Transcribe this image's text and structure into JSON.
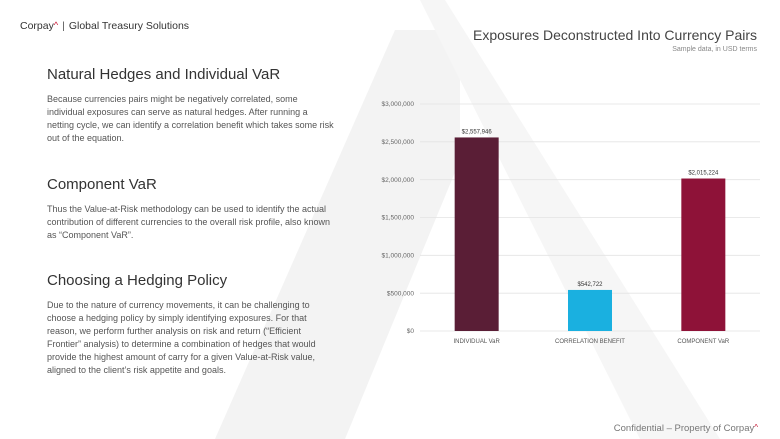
{
  "brand": {
    "name": "Corpay",
    "tagline": "Global Treasury Solutions"
  },
  "sections": [
    {
      "title": "Natural Hedges and Individual VaR",
      "body": "Because currencies pairs might be negatively correlated, some individual exposures can serve as natural hedges. After running a netting cycle, we can identify a correlation benefit which takes some risk out of the equation."
    },
    {
      "title": "Component VaR",
      "body": "Thus the Value-at-Risk methodology can be used to identify the actual contribution of different currencies to the overall risk profile, also known as “Component VaR”."
    },
    {
      "title": "Choosing a Hedging Policy",
      "body": "Due to the nature of currency movements, it can be challenging to choose a hedging policy by simply identifying exposures. For that reason, we perform further analysis on risk and return (“Efficient Frontier” analysis) to determine a combination of hedges that would provide the highest amount of carry for a given Value-at-Risk value, aligned to the client’s risk appetite and goals."
    }
  ],
  "chart_data": {
    "type": "bar",
    "title": "Exposures Deconstructed Into Currency Pairs",
    "subtitle": "Sample data, in USD terms",
    "categories": [
      "INDIVIDUAL VaR",
      "CORRELATION BENEFIT",
      "COMPONENT VaR"
    ],
    "values": [
      2557946,
      542722,
      2015224
    ],
    "data_labels": [
      "$2,557,946",
      "$542,722",
      "$2,015,224"
    ],
    "colors": [
      "#5a1e36",
      "#1ab0e0",
      "#8e1238"
    ],
    "ylim": [
      0,
      3000000
    ],
    "yticks": [
      0,
      500000,
      1000000,
      1500000,
      2000000,
      2500000,
      3000000
    ],
    "ytick_labels": [
      "$0",
      "$500,000",
      "$1,000,000",
      "$1,500,000",
      "$2,000,000",
      "$2,500,000",
      "$3,000,000"
    ],
    "grid": true,
    "xlabel": "",
    "ylabel": ""
  },
  "footer": {
    "text": "Confidential – Property of Corpay"
  },
  "colors": {
    "accent": "#c8102e",
    "watermark": "#f2f2f2"
  }
}
